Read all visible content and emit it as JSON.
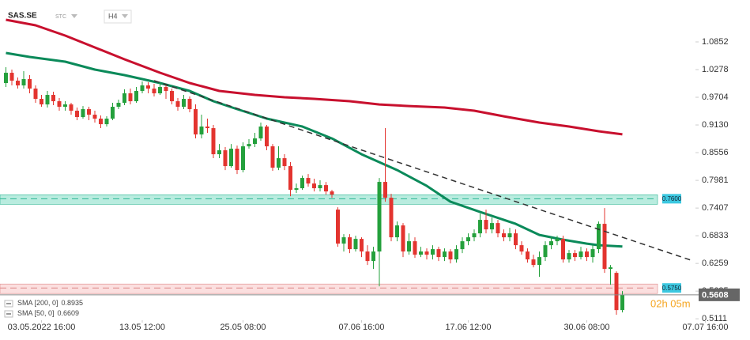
{
  "header": {
    "symbol": "SAS.SE",
    "exchange": "STC",
    "timeframe": "H4"
  },
  "chart_data": {
    "type": "candlestick",
    "up_color": "#24a03c",
    "down_color": "#e3342f",
    "xlim": [
      -1,
      125
    ],
    "ylim": [
      0.5081,
      1.1721
    ],
    "yticks": [
      1.0852,
      1.0278,
      0.9704,
      {
        "value": 0.913,
        "label": "0.9130"
      },
      0.8556,
      0.7981,
      0.7407,
      0.6833,
      0.6259,
      0.5685,
      0.5111
    ],
    "xticks": [
      {
        "value": 6,
        "label": "03.05.2022  16:00"
      },
      {
        "value": 23,
        "label": "13.05  12:00"
      },
      {
        "value": 40,
        "label": "25.05  08:00"
      },
      {
        "value": 60,
        "label": "07.06  16:00"
      },
      {
        "value": 78,
        "label": "17.06  12:00"
      },
      {
        "value": 98,
        "label": "30.06  08:00"
      },
      {
        "value": 118,
        "label": "07.07  16:00"
      }
    ],
    "open": [
      0.9999,
      1.0212,
      1.0048,
      0.995,
      1.0081,
      0.9884,
      0.9671,
      0.9556,
      0.9753,
      0.9622,
      0.9507,
      0.9556,
      0.9425,
      0.9294,
      0.9458,
      0.9343,
      0.9261,
      0.9146,
      0.9261,
      0.9507,
      0.9589,
      0.9786,
      0.9622,
      0.9835,
      0.995,
      0.9884,
      0.9786,
      0.9917,
      0.9835,
      0.9622,
      0.9507,
      0.9671,
      0.9458,
      0.8933,
      0.9097,
      0.9064,
      0.8523,
      0.8605,
      0.8277,
      0.8638,
      0.8195,
      0.8687,
      0.8736,
      0.8851,
      0.9097,
      0.8687,
      0.8244,
      0.8441,
      0.8277,
      0.7785,
      0.7818,
      0.8031,
      0.7916,
      0.7818,
      0.7883,
      0.7752,
      0.7375,
      0.667,
      0.6801,
      0.6555,
      0.6768,
      0.6506,
      0.6309,
      0.6506,
      0.7949,
      0.7621,
      0.6801,
      0.7047,
      0.6506,
      0.6719,
      0.644,
      0.6506,
      0.644,
      0.6555,
      0.6391,
      0.6506,
      0.6342,
      0.6555,
      0.6719,
      0.6801,
      0.6883,
      0.7162,
      0.6965,
      0.7096,
      0.6883,
      0.6801,
      0.6883,
      0.6637,
      0.6506,
      0.6342,
      0.6227,
      0.6391,
      0.6637,
      0.6719,
      0.6768,
      0.6342,
      0.6473,
      0.6391,
      0.6506,
      0.6391,
      0.6555,
      0.708,
      0.6145,
      0.6063,
      0.5292
    ],
    "high": [
      1.0327,
      1.0278,
      1.0114,
      1.0245,
      1.0163,
      0.995,
      0.9753,
      0.9835,
      0.9819,
      0.9687,
      0.9622,
      0.9589,
      0.9491,
      0.9523,
      0.9507,
      0.9425,
      0.9327,
      0.931,
      0.9589,
      0.9655,
      0.9868,
      0.9884,
      0.9917,
      1.0032,
      1.0015,
      0.9983,
      0.9999,
      0.9983,
      0.9884,
      0.9687,
      0.9753,
      0.972,
      0.9556,
      0.9343,
      0.9261,
      0.913,
      0.8736,
      0.8671,
      0.8736,
      0.8703,
      0.8769,
      0.8835,
      0.8966,
      0.9179,
      0.913,
      0.8736,
      0.8687,
      0.8523,
      0.8359,
      0.7916,
      0.808,
      0.8113,
      0.8015,
      0.7982,
      0.7949,
      0.7785,
      0.7424,
      0.6867,
      0.6867,
      0.6834,
      0.6801,
      0.6637,
      0.6604,
      0.8031,
      0.9064,
      0.7703,
      0.7129,
      0.7096,
      0.6883,
      0.6801,
      0.6604,
      0.6571,
      0.6637,
      0.6604,
      0.6571,
      0.6555,
      0.6637,
      0.6801,
      0.6883,
      0.6965,
      0.7293,
      0.7375,
      0.7211,
      0.7162,
      0.6965,
      0.6998,
      0.6965,
      0.6719,
      0.6571,
      0.644,
      0.6506,
      0.6719,
      0.6801,
      0.6834,
      0.6834,
      0.6539,
      0.6539,
      0.6604,
      0.6571,
      0.6637,
      0.7129,
      0.7408,
      0.6227,
      0.6096,
      0.5686
    ],
    "low": [
      0.9917,
      0.995,
      0.9884,
      0.9884,
      0.9786,
      0.9589,
      0.9507,
      0.9491,
      0.954,
      0.9425,
      0.9425,
      0.9343,
      0.9228,
      0.9261,
      0.9228,
      0.9179,
      0.9064,
      0.9097,
      0.9228,
      0.9458,
      0.954,
      0.9556,
      0.9589,
      0.9786,
      0.9786,
      0.972,
      0.9753,
      0.9671,
      0.9556,
      0.9425,
      0.9458,
      0.9392,
      0.8851,
      0.8851,
      0.8966,
      0.8441,
      0.8441,
      0.8195,
      0.8244,
      0.8113,
      0.8146,
      0.8638,
      0.8671,
      0.8802,
      0.8605,
      0.8179,
      0.8195,
      0.8195,
      0.7654,
      0.7719,
      0.7785,
      0.7851,
      0.7752,
      0.7752,
      0.7687,
      0.7621,
      0.6604,
      0.6506,
      0.6473,
      0.6506,
      0.6391,
      0.6227,
      0.6145,
      0.5784,
      0.7539,
      0.6719,
      0.6719,
      0.6391,
      0.644,
      0.6375,
      0.6391,
      0.6342,
      0.6342,
      0.6309,
      0.6309,
      0.626,
      0.6276,
      0.6473,
      0.6637,
      0.6719,
      0.6801,
      0.6883,
      0.6883,
      0.6801,
      0.6719,
      0.6719,
      0.6555,
      0.644,
      0.6276,
      0.6178,
      0.5981,
      0.6309,
      0.6555,
      0.6637,
      0.6276,
      0.6276,
      0.6309,
      0.6342,
      0.6309,
      0.6276,
      0.6473,
      0.6063,
      0.5817,
      0.5193,
      0.5243
    ],
    "close": [
      1.0212,
      1.0048,
      0.995,
      1.0081,
      0.9884,
      0.9671,
      0.9556,
      0.9753,
      0.9622,
      0.9507,
      0.9556,
      0.9425,
      0.9294,
      0.9458,
      0.9343,
      0.9261,
      0.9146,
      0.9261,
      0.9507,
      0.9589,
      0.9786,
      0.9622,
      0.9835,
      0.995,
      0.9884,
      0.9786,
      0.9917,
      0.9835,
      0.9622,
      0.9507,
      0.9671,
      0.9458,
      0.8933,
      0.9097,
      0.9064,
      0.8523,
      0.8605,
      0.8277,
      0.8638,
      0.8195,
      0.8687,
      0.8736,
      0.8851,
      0.9097,
      0.8687,
      0.8244,
      0.8441,
      0.8277,
      0.7785,
      0.7818,
      0.8031,
      0.7916,
      0.7818,
      0.7883,
      0.7752,
      0.7687,
      0.667,
      0.6801,
      0.6555,
      0.6768,
      0.6506,
      0.6309,
      0.6506,
      0.7949,
      0.7621,
      0.6801,
      0.7047,
      0.6506,
      0.6719,
      0.644,
      0.6506,
      0.644,
      0.6555,
      0.6391,
      0.6506,
      0.6342,
      0.6555,
      0.6719,
      0.6801,
      0.6883,
      0.7162,
      0.6965,
      0.7096,
      0.6883,
      0.6801,
      0.6883,
      0.6637,
      0.6506,
      0.6342,
      0.6227,
      0.6391,
      0.6637,
      0.6719,
      0.6768,
      0.6342,
      0.6473,
      0.6391,
      0.6506,
      0.6391,
      0.6555,
      0.708,
      0.6145,
      0.6178,
      0.5292,
      0.5608
    ],
    "indicators": [
      {
        "name": "SMA [200, 0]",
        "color": "#c8102e",
        "x": [
          0,
          5,
          10,
          15,
          20,
          26,
          31,
          36,
          42,
          47,
          52,
          58,
          63,
          68,
          74,
          79,
          84,
          90,
          95,
          100,
          104
        ],
        "values": [
          1.1311,
          1.1196,
          1.0983,
          1.0737,
          1.0491,
          1.0212,
          0.9999,
          0.9835,
          0.9753,
          0.9704,
          0.9671,
          0.9622,
          0.9556,
          0.9523,
          0.9491,
          0.9425,
          0.931,
          0.9179,
          0.9097,
          0.8999,
          0.8935
        ]
      },
      {
        "name": "SMA [50, 0]",
        "color": "#0b8a5a",
        "x": [
          0,
          4,
          10,
          15,
          20,
          26,
          31,
          35,
          39,
          44,
          50,
          55,
          60,
          66,
          71,
          75,
          80,
          86,
          90,
          94,
          98,
          100,
          104
        ],
        "values": [
          1.0622,
          1.054,
          1.0442,
          1.0278,
          1.0163,
          0.9999,
          0.9835,
          0.9622,
          0.9458,
          0.9261,
          0.9097,
          0.8851,
          0.8523,
          0.8195,
          0.7867,
          0.7539,
          0.7326,
          0.708,
          0.685,
          0.6752,
          0.667,
          0.6637,
          0.6609
        ]
      }
    ],
    "trendline": {
      "x": [
        25,
        116
      ],
      "values": [
        1.0048,
        0.6309
      ],
      "color": "#333333"
    },
    "levels": [
      {
        "value": 0.76,
        "value_label": "0.7600",
        "color": "#7fdcc4",
        "line_color": "#2bb592"
      },
      {
        "value": 0.575,
        "value_label": "0.5750",
        "color": "#f7c4c4",
        "line_color": "#d88"
      }
    ],
    "last_price": 0.5608,
    "countdown": "02h 05m"
  }
}
